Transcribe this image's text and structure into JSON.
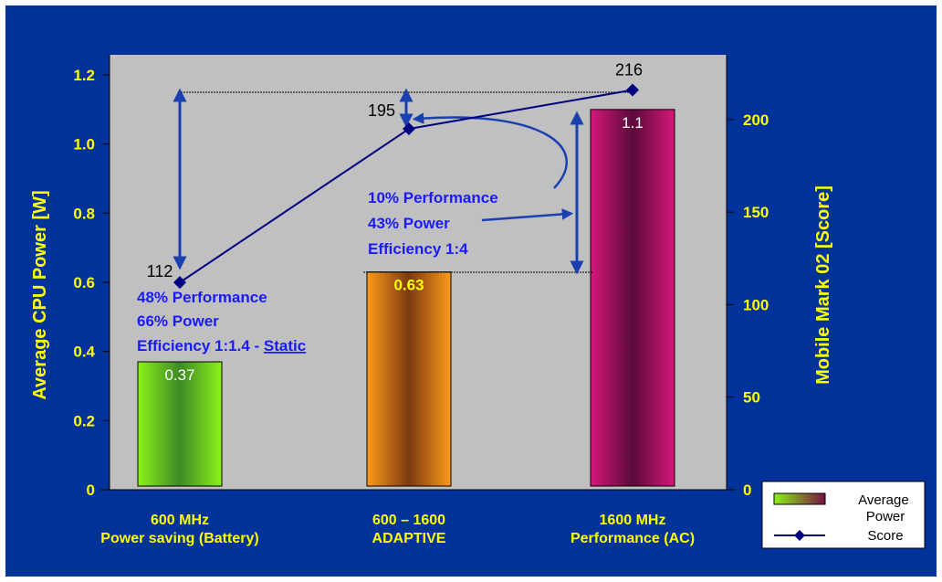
{
  "chart_data": {
    "type": "bar",
    "categories": [
      "600 MHz\nPower saving (Battery)",
      "600 – 1600\nADAPTIVE",
      "1600 MHz\nPerformance (AC)"
    ],
    "series": [
      {
        "name": "Average Power",
        "axis": "left",
        "type": "bar",
        "values": [
          0.37,
          0.63,
          1.1
        ],
        "value_labels": [
          "0.37",
          "0.63",
          "1.1"
        ]
      },
      {
        "name": "Score",
        "axis": "right",
        "type": "line",
        "values": [
          112,
          195,
          216
        ],
        "value_labels": [
          "112",
          "195",
          "216"
        ]
      }
    ],
    "ylabel": "Average CPU Power  [W]",
    "y2label": "Mobile Mark 02 [Score]",
    "yticks": [
      "0",
      "0.2",
      "0.4",
      "0.6",
      "0.8",
      "1.0",
      "1.2"
    ],
    "y2ticks": [
      "0",
      "50",
      "100",
      "150",
      "200"
    ],
    "ylim": [
      0,
      1.2
    ],
    "y2lim": [
      0,
      200
    ],
    "legend_position": "bottom-right",
    "annotations": [
      {
        "lines": [
          "48% Performance",
          "66% Power",
          "Efficiency 1:1.4 - "
        ],
        "underlined_suffix": "Static"
      },
      {
        "lines": [
          "10% Performance",
          "43% Power",
          "Efficiency 1:4"
        ]
      }
    ],
    "colors": {
      "background": "#003399",
      "plot_area": "#c0c0c0",
      "axis_text": "#ffff00",
      "annotation_text": "#1a1aff",
      "line": "#000080"
    }
  }
}
